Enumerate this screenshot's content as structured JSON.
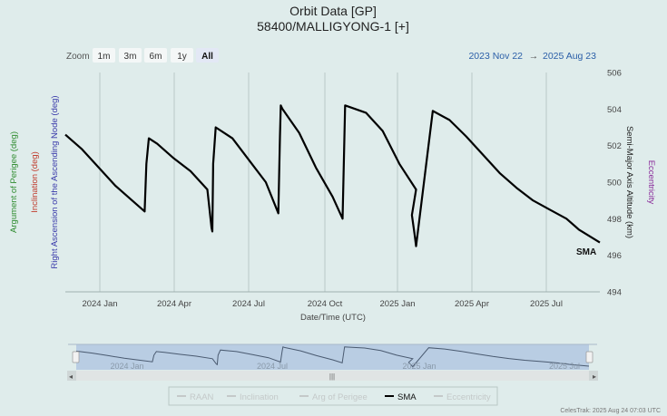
{
  "chart_data": {
    "type": "line",
    "title": "Orbit Data [GP]",
    "subtitle": "58400/MALLIGYONG-1 [+]",
    "xlabel": "Date/Time (UTC)",
    "ylabel": "Semi-Major Axis Altitude (km)",
    "ylim": [
      494,
      506
    ],
    "yticks": [
      "494",
      "496",
      "498",
      "500",
      "502",
      "504",
      "506"
    ],
    "xticks": [
      "2024 Jan",
      "2024 Apr",
      "2024 Jul",
      "2024 Oct",
      "2025 Jan",
      "2025 Apr",
      "2025 Jul"
    ],
    "grid": true,
    "side_axis_labels": {
      "argument_of_perigee": "Argument of Perigee (deg)",
      "inclination": "Inclination (deg)",
      "raan": "Right Ascension of the Ascending Node (deg)",
      "eccentricity": "Eccentricity"
    },
    "series": [
      {
        "name": "SMA",
        "color": "#000000",
        "x_days_since_2023_11_22": [
          0,
          20,
          40,
          60,
          80,
          95,
          97,
          100,
          110,
          130,
          150,
          170,
          175,
          176,
          177,
          180,
          200,
          220,
          240,
          255,
          257,
          258,
          260,
          280,
          300,
          320,
          332,
          335,
          360,
          380,
          400,
          420,
          415,
          418,
          420,
          440,
          460,
          480,
          500,
          520,
          540,
          560,
          580,
          600,
          615,
          640
        ],
        "values": [
          502.6,
          501.8,
          500.8,
          499.8,
          499.0,
          498.4,
          501.0,
          502.4,
          502.1,
          501.3,
          500.6,
          499.6,
          497.5,
          497.3,
          501.0,
          503.0,
          502.4,
          501.2,
          500.0,
          498.3,
          502.5,
          504.2,
          504.0,
          502.7,
          500.8,
          499.2,
          498.0,
          504.2,
          503.8,
          502.8,
          501.0,
          499.6,
          498.2,
          497.2,
          496.5,
          503.9,
          503.4,
          502.5,
          501.5,
          500.5,
          499.7,
          499.0,
          498.5,
          498.0,
          497.4,
          496.7
        ]
      }
    ],
    "navigator_xticks": [
      "2024 Jan",
      "2024 Jul",
      "2025 Jan",
      "2025 Jul"
    ],
    "legend": [
      "RAAN",
      "Inclination",
      "Arg of Perigee",
      "SMA",
      "Eccentricity"
    ],
    "legend_position": "bottom",
    "series_label": "SMA"
  },
  "toolbar": {
    "zoom_label": "Zoom",
    "buttons": [
      "1m",
      "3m",
      "6m",
      "1y",
      "All"
    ],
    "from_date": "2023 Nov 22",
    "arrow": "→",
    "to_date": "2025 Aug 23"
  },
  "credit": "CelesTrak: 2025 Aug 24 07:03 UTC",
  "colors": {
    "background": "#dfeceb",
    "raan": "#3a3aaa",
    "inclination": "#c0392b",
    "argument_of_perigee": "#2e8b2e",
    "eccentricity": "#8a2a9a",
    "range_text": "#2b5fa8",
    "navigator_fill": "#b9cde3"
  }
}
